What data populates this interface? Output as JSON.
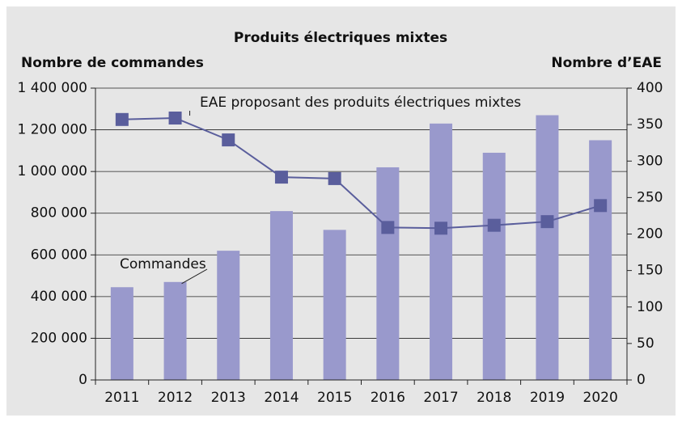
{
  "chart_data": {
    "type": "bar-line",
    "title": "Produits électriques mixtes",
    "ylabel": "Nombre de commandes",
    "y2label": "Nombre d’EAE",
    "categories": [
      "2011",
      "2012",
      "2013",
      "2014",
      "2015",
      "2016",
      "2017",
      "2018",
      "2019",
      "2020"
    ],
    "series": [
      {
        "name": "Commandes",
        "type": "bar",
        "axis": "y",
        "color": "#9999cc",
        "values": [
          445000,
          470000,
          620000,
          810000,
          720000,
          1020000,
          1230000,
          1090000,
          1270000,
          1150000
        ]
      },
      {
        "name": "EAE proposant des produits électriques mixtes",
        "type": "line",
        "axis": "y2",
        "color": "#5a5e9c",
        "values": [
          357,
          359,
          329,
          278,
          276,
          209,
          208,
          212,
          217,
          239
        ]
      }
    ],
    "ylim": [
      0,
      1400000
    ],
    "yticks": [
      0,
      {
        "value": 200000,
        "label": "200 000"
      },
      {
        "value": 400000,
        "label": "400 000"
      },
      {
        "value": 600000,
        "label": "600 000"
      },
      {
        "value": 800000,
        "label": "800 000"
      },
      {
        "value": 1000000,
        "label": "1 000 000"
      },
      {
        "value": 1200000,
        "label": "1 200 000"
      },
      {
        "value": 1400000,
        "label": "1 400 000"
      }
    ],
    "y2lim": [
      0,
      400
    ],
    "y2ticks": [
      0,
      50,
      100,
      150,
      200,
      250,
      300,
      350,
      400
    ],
    "grid": true
  }
}
